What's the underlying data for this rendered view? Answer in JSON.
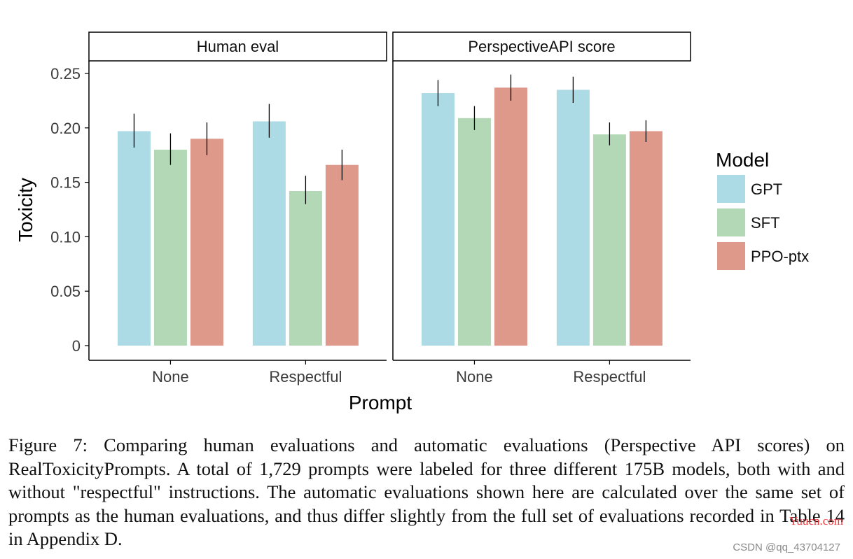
{
  "chart_data": {
    "type": "bar",
    "ylabel": "Toxicity",
    "xlabel": "Prompt",
    "ylim": [
      0,
      0.25
    ],
    "yticks": [
      "0",
      "0.05",
      "0.10",
      "0.15",
      "0.20",
      "0.25"
    ],
    "ytick_values": [
      0,
      0.05,
      0.1,
      0.15,
      0.2,
      0.25
    ],
    "categories": [
      "None",
      "Respectful"
    ],
    "legend": {
      "title": "Model",
      "placement": "right"
    },
    "grid": false,
    "panels": [
      {
        "title": "Human eval",
        "series": [
          {
            "name": "GPT",
            "values": [
              0.197,
              0.206
            ],
            "err_low": [
              0.182,
              0.191
            ],
            "err_high": [
              0.213,
              0.222
            ]
          },
          {
            "name": "SFT",
            "values": [
              0.18,
              0.142
            ],
            "err_low": [
              0.166,
              0.13
            ],
            "err_high": [
              0.195,
              0.156
            ]
          },
          {
            "name": "PPO-ptx",
            "values": [
              0.19,
              0.166
            ],
            "err_low": [
              0.175,
              0.152
            ],
            "err_high": [
              0.205,
              0.18
            ]
          }
        ]
      },
      {
        "title": "PerspectiveAPI score",
        "series": [
          {
            "name": "GPT",
            "values": [
              0.232,
              0.235
            ],
            "err_low": [
              0.22,
              0.223
            ],
            "err_high": [
              0.244,
              0.247
            ]
          },
          {
            "name": "SFT",
            "values": [
              0.209,
              0.194
            ],
            "err_low": [
              0.198,
              0.184
            ],
            "err_high": [
              0.22,
              0.205
            ]
          },
          {
            "name": "PPO-ptx",
            "values": [
              0.237,
              0.197
            ],
            "err_low": [
              0.225,
              0.187
            ],
            "err_high": [
              0.249,
              0.207
            ]
          }
        ]
      }
    ],
    "colors": {
      "GPT": "#acdae5",
      "SFT": "#b2d8b6",
      "PPO-ptx": "#df998b"
    }
  },
  "caption": "Figure 7: Comparing human evaluations and automatic evaluations (Perspective API scores) on RealToxicityPrompts. A total of 1,729 prompts were labeled for three different 175B models, both with and without \"respectful\" instructions. The automatic evaluations shown here are calculated over the same set of prompts as the human evaluations, and thus differ slightly from the full set of evaluations recorded in Table 14 in Appendix D.",
  "watermark": "CSDN @qq_43704127",
  "site_mark": "Yuucn.com"
}
